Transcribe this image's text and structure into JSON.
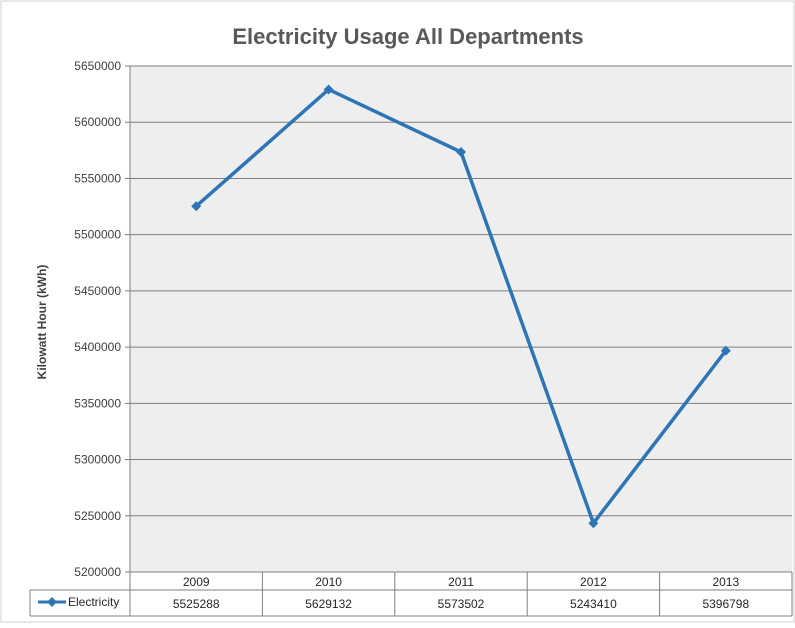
{
  "chart_data": {
    "type": "line",
    "title": "Electricity Usage All Departments",
    "ylabel": "Kilowatt Hour (kWh)",
    "xlabel": "",
    "categories": [
      "2009",
      "2010",
      "2011",
      "2012",
      "2013"
    ],
    "yticks": [
      "5200000",
      "5250000",
      "5300000",
      "5350000",
      "5400000",
      "5450000",
      "5500000",
      "5550000",
      "5600000",
      "5650000"
    ],
    "ylim": [
      5200000,
      5650000
    ],
    "grid": true,
    "series": [
      {
        "name": "Electricity",
        "values": [
          5525288,
          5629132,
          5573502,
          5243410,
          5396798
        ],
        "value_labels": [
          "5525288",
          "5629132",
          "5573502",
          "5243410",
          "5396798"
        ],
        "color": "#2e75b6"
      }
    ],
    "data_table": true,
    "plot_background": "#eeeeee"
  }
}
